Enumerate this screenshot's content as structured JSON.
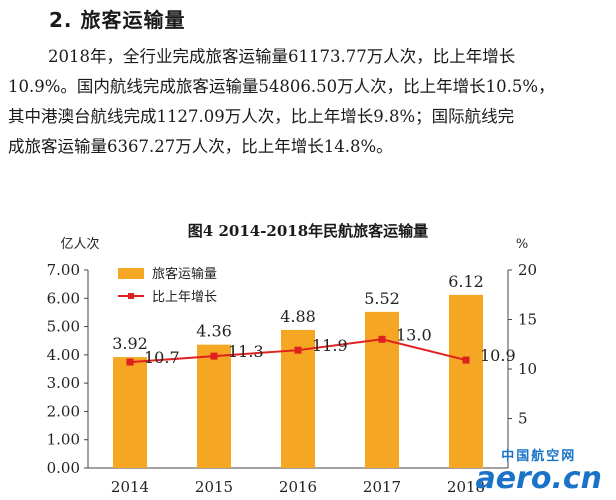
{
  "section": {
    "title": "2. 旅客运输量"
  },
  "paragraph": {
    "lines": [
      "2018年，全行业完成旅客运输量61173.77万人次，比上年增长",
      "10.9%。国内航线完成旅客运输量54806.50万人次，比上年增长10.5%，",
      "其中港澳台航线完成1127.09万人次，比上年增长9.8%；国际航线完",
      "成旅客运输量6367.27万人次，比上年增长14.8%。"
    ]
  },
  "chart_data": {
    "type": "bar",
    "title": "图4 2014-2018年民航旅客运输量",
    "categories": [
      "2014",
      "2015",
      "2016",
      "2017",
      "2018"
    ],
    "ylabel_left": "亿人次",
    "ylabel_right": "%",
    "yticks_left": [
      "0.00",
      "1.00",
      "2.00",
      "3.00",
      "4.00",
      "5.00",
      "6.00",
      "7.00"
    ],
    "yticks_right": [
      "5",
      "10",
      "15",
      "20"
    ],
    "ylim_left": [
      0,
      7
    ],
    "ylim_right": [
      0,
      20
    ],
    "series": [
      {
        "name": "旅客运输量",
        "kind": "bar",
        "axis": "left",
        "color": "#f5a623",
        "values": [
          3.92,
          4.36,
          4.88,
          5.52,
          6.12
        ],
        "labels": [
          "3.92",
          "4.36",
          "4.88",
          "5.52",
          "6.12"
        ]
      },
      {
        "name": "比上年增长",
        "kind": "line",
        "axis": "right",
        "color": "#e02020",
        "values": [
          10.7,
          11.3,
          11.9,
          13.0,
          10.9
        ],
        "labels": [
          "10.7",
          "11.3",
          "11.9",
          "13.0",
          "10.9"
        ]
      }
    ],
    "legend_position": "top-left"
  },
  "watermark": {
    "cn": "中国航空网",
    "en": "aero.cn"
  }
}
